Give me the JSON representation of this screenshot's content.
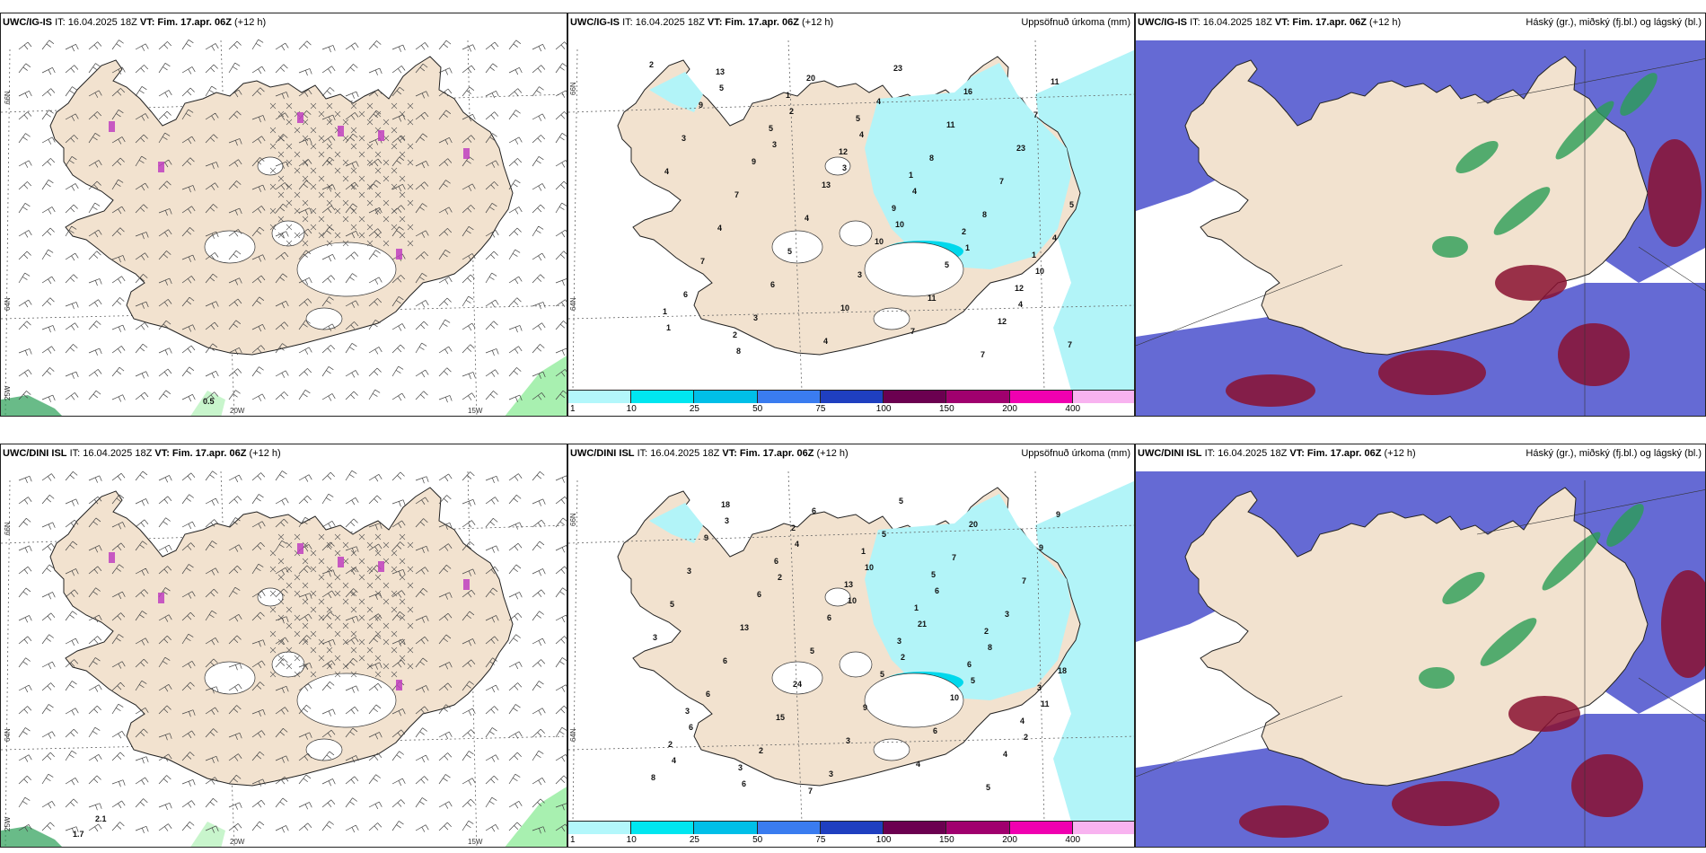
{
  "panels": [
    {
      "id": "p1",
      "title_prefix": "UWC/IG-IS",
      "title_text": "IT: 16.04.2025 18Z ",
      "vt_bold": "VT: Fim. 17.apr. 06Z",
      "lead": " (+12 h)",
      "right": "",
      "labels": [
        "0.5"
      ],
      "axis": [
        "66N",
        "64N",
        "25W",
        "20W",
        "15W"
      ]
    },
    {
      "id": "p2",
      "title_prefix": "UWC/IG-IS",
      "title_text": "IT: 16.04.2025 18Z ",
      "vt_bold": "VT: Fim. 17.apr. 06Z",
      "lead": " (+12 h)",
      "right": "Uppsöfnuð úrkoma (mm)",
      "labels": [
        "2",
        "3",
        "10",
        "4",
        "5",
        "3",
        "1",
        "1",
        "2",
        "4",
        "10",
        "8",
        "4",
        "8",
        "6",
        "20",
        "8",
        "4",
        "3",
        "4",
        "7",
        "7",
        "4",
        "11",
        "5",
        "6",
        "23",
        "23",
        "4",
        "10",
        "16",
        "4",
        "5",
        "7",
        "7",
        "7",
        "3",
        "7",
        "3",
        "4",
        "11",
        "11",
        "9",
        "10",
        "12",
        "9",
        "13",
        "5",
        "7",
        "5",
        "9",
        "12",
        "13",
        "12",
        "2",
        "1",
        "1",
        "1",
        "1",
        "2",
        "5"
      ],
      "axis": [
        "66N",
        "64N"
      ]
    },
    {
      "id": "p3",
      "title_prefix": "UWC/IG-IS",
      "title_text": "IT: 16.04.2025 18Z ",
      "vt_bold": "VT: Fim. 17.apr. 06Z",
      "lead": " (+12 h)",
      "right": "Háský (gr.), miðský (fj.bl.) og lágský (bl.)",
      "labels": [],
      "axis": []
    },
    {
      "id": "p4",
      "title_prefix": "UWC/DINI ISL",
      "title_text": "IT: 16.04.2025 18Z ",
      "vt_bold": "VT: Fim. 17.apr. 06Z",
      "lead": " (+12 h)",
      "right": "",
      "labels": [
        "1.7",
        "2.1"
      ],
      "axis": [
        "66N",
        "64N",
        "25W",
        "20W",
        "15W"
      ]
    },
    {
      "id": "p5",
      "title_prefix": "UWC/DINI ISL",
      "title_text": "IT: 16.04.2025 18Z ",
      "vt_bold": "VT: Fim. 17.apr. 06Z",
      "lead": " (+12 h)",
      "right": "Uppsöfnuð úrkoma (mm)",
      "labels": [
        "2",
        "2",
        "2",
        "3",
        "10",
        "5",
        "4",
        "4",
        "21",
        "11",
        "6",
        "10",
        "8",
        "6",
        "6",
        "6",
        "18",
        "2",
        "5",
        "3",
        "6",
        "3",
        "7",
        "3",
        "15",
        "5",
        "7",
        "6",
        "3",
        "20",
        "5",
        "24",
        "4",
        "9",
        "13",
        "9",
        "5",
        "3",
        "5",
        "6",
        "9",
        "6",
        "5",
        "4",
        "9",
        "6",
        "10",
        "8",
        "6",
        "3",
        "4",
        "18",
        "13",
        "6",
        "2",
        "2",
        "1",
        "3",
        "3",
        "1",
        "2",
        "3",
        "7",
        "5"
      ],
      "axis": [
        "66N",
        "64N"
      ]
    },
    {
      "id": "p6",
      "title_prefix": "UWC/DINI ISL",
      "title_text": "IT: 16.04.2025 18Z ",
      "vt_bold": "VT: Fim. 17.apr. 06Z",
      "lead": " (+12 h)",
      "right": "Háský (gr.), miðský (fj.bl.) og lágský (bl.)",
      "labels": [],
      "axis": []
    }
  ],
  "colorbar": {
    "ticks": [
      "1",
      "10",
      "25",
      "50",
      "75",
      "100",
      "150",
      "200",
      "400"
    ],
    "colors": [
      "#b3f7fb",
      "#00e6f0",
      "#00bfe8",
      "#3a7cf0",
      "#1f3fc0",
      "#6b0050",
      "#a0006e",
      "#f000b0",
      "#f8b3f0"
    ]
  },
  "colors": {
    "land": "#f2e2cf",
    "rain": "#b2f4f8",
    "high_cloud": "#2a9e55",
    "mid_cloud": "#4a50cc",
    "low_cloud": "#8a1030",
    "snow_mark": "#c040c0"
  }
}
